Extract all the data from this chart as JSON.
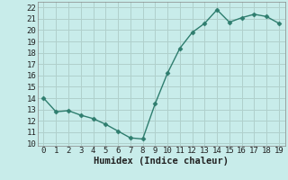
{
  "x": [
    0,
    1,
    2,
    3,
    4,
    5,
    6,
    7,
    8,
    9,
    10,
    11,
    12,
    13,
    14,
    15,
    16,
    17,
    18,
    19
  ],
  "y": [
    14.0,
    12.8,
    12.9,
    12.5,
    12.2,
    11.7,
    11.1,
    10.5,
    10.4,
    13.5,
    16.2,
    18.4,
    19.8,
    20.6,
    21.8,
    20.7,
    21.1,
    21.4,
    21.2,
    20.6
  ],
  "line_color": "#2e7d6e",
  "marker": "D",
  "marker_size": 2.5,
  "xlabel": "Humidex (Indice chaleur)",
  "xlim": [
    -0.5,
    19.5
  ],
  "ylim": [
    9.8,
    22.5
  ],
  "yticks": [
    10,
    11,
    12,
    13,
    14,
    15,
    16,
    17,
    18,
    19,
    20,
    21,
    22
  ],
  "xticks": [
    0,
    1,
    2,
    3,
    4,
    5,
    6,
    7,
    8,
    9,
    10,
    11,
    12,
    13,
    14,
    15,
    16,
    17,
    18,
    19
  ],
  "bg_color": "#c8ecea",
  "grid_color": "#b0d0cc",
  "font_color": "#222222",
  "xlabel_fontsize": 7.5,
  "tick_fontsize": 6.5,
  "linewidth": 1.0
}
